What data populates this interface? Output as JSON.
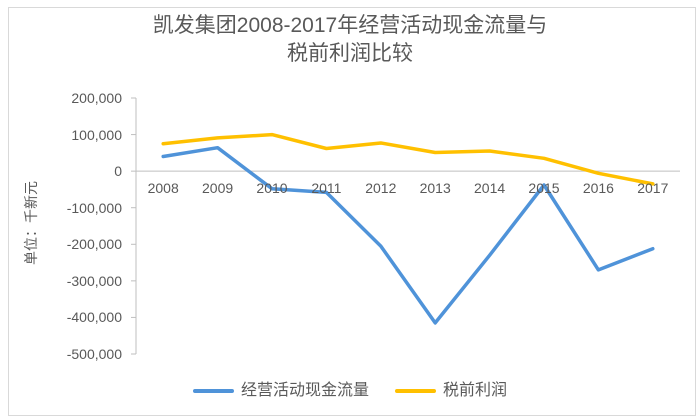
{
  "title": {
    "line1": "凯发集团2008-2017年经营活动现金流量与",
    "line2": "税前利润比较"
  },
  "y_axis": {
    "unit_label": "单位：千新元",
    "tick_labels": [
      "200,000",
      "100,000",
      "0",
      "-100,000",
      "-200,000",
      "-300,000",
      "-400,000",
      "-500,000"
    ]
  },
  "colors": {
    "cash_flow_blue": "#4f93d9",
    "profit_gold": "#ffc000",
    "text_gray": "#595959",
    "axis_line": "#bfbfbf",
    "frame_border": "#d9d9d9"
  },
  "chart_data": {
    "type": "line",
    "title": "凯发集团2008-2017年经营活动现金流量与税前利润比较",
    "categories": [
      "2008",
      "2009",
      "2010",
      "2011",
      "2012",
      "2013",
      "2014",
      "2015",
      "2016",
      "2017"
    ],
    "series": [
      {
        "name": "经营活动现金流量",
        "color": "#4f93d9",
        "values": [
          40000,
          64000,
          -48000,
          -58000,
          -205000,
          -415000,
          -230000,
          -38000,
          -270000,
          -212000
        ]
      },
      {
        "name": "税前利润",
        "color": "#ffc000",
        "values": [
          75000,
          91000,
          100000,
          62000,
          77000,
          51000,
          55000,
          35000,
          -6000,
          -35000
        ]
      }
    ],
    "xlabel": "",
    "ylabel": "单位：千新元",
    "ylim": [
      -500000,
      200000
    ],
    "ytick_step": 100000,
    "grid": "zero-baseline-only",
    "legend_position": "bottom"
  }
}
